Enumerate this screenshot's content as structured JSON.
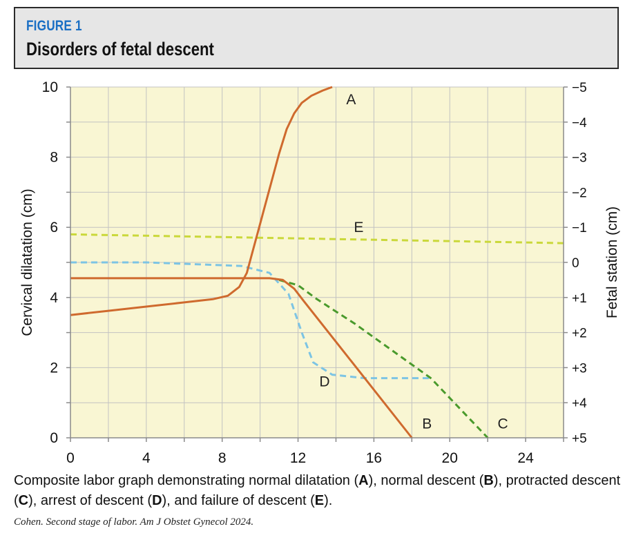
{
  "figure": {
    "label": "FIGURE 1",
    "title": "Disorders of fetal descent"
  },
  "caption": {
    "text_1": "Composite labor graph demonstrating normal dilatation (",
    "a": "A",
    "text_2": "), normal descent (",
    "b": "B",
    "text_3": "), protracted descent (",
    "c": "C",
    "text_4": "), arrest of descent (",
    "d": "D",
    "text_5": "), and failure of descent (",
    "e": "E",
    "text_6": ")."
  },
  "citation": "Cohen. Second stage of labor. Am J Obstet Gynecol 2024.",
  "colors": {
    "plot_bg": "#f9f6d3",
    "grid": "#c2c2c2",
    "axis": "#8a8a8a",
    "orange": "#cf6a2e",
    "green": "#4a9a2c",
    "blue": "#7cc4e4",
    "yellowgreen": "#cad83a"
  },
  "chart_data": {
    "type": "line",
    "xlabel": "",
    "ylabel": "Cervical dilatation (cm)",
    "y2label": "Fetal station (cm)",
    "xlim": [
      0,
      26
    ],
    "ylim": [
      0,
      10
    ],
    "y2lim": [
      5,
      -5
    ],
    "x_ticks": [
      0,
      4,
      8,
      12,
      16,
      20,
      24
    ],
    "y_ticks": [
      0,
      2,
      4,
      6,
      8,
      10
    ],
    "y2_ticks": [
      -5,
      -4,
      -3,
      -2,
      -1,
      0,
      1,
      2,
      3,
      4,
      5
    ],
    "y2_tick_labels": [
      "−5",
      "−4",
      "−3",
      "−2",
      "−1",
      "0",
      "+1",
      "+2",
      "+3",
      "+4",
      "+5"
    ],
    "grid": true,
    "series": [
      {
        "name": "A",
        "description": "normal dilatation",
        "axis": "left",
        "style": "solid",
        "color_key": "orange",
        "label_point": [
          14.8,
          9.65
        ],
        "points": [
          [
            0,
            3.5
          ],
          [
            2,
            3.62
          ],
          [
            4,
            3.74
          ],
          [
            6,
            3.86
          ],
          [
            7.5,
            3.95
          ],
          [
            8.3,
            4.05
          ],
          [
            8.9,
            4.3
          ],
          [
            9.3,
            4.7
          ],
          [
            9.6,
            5.3
          ],
          [
            9.9,
            5.9
          ],
          [
            10.2,
            6.5
          ],
          [
            10.6,
            7.3
          ],
          [
            11.0,
            8.1
          ],
          [
            11.4,
            8.8
          ],
          [
            11.8,
            9.25
          ],
          [
            12.2,
            9.55
          ],
          [
            12.7,
            9.75
          ],
          [
            13.3,
            9.9
          ],
          [
            13.8,
            10.0
          ]
        ]
      },
      {
        "name": "B",
        "description": "normal descent",
        "axis": "right",
        "style": "solid",
        "color_key": "orange",
        "label_point": [
          18.8,
          4.6
        ],
        "points": [
          [
            0,
            0.45
          ],
          [
            10.5,
            0.45
          ],
          [
            11.2,
            0.5
          ],
          [
            11.8,
            0.75
          ],
          [
            12.3,
            1.1
          ],
          [
            18.0,
            5.0
          ]
        ]
      },
      {
        "name": "C",
        "description": "protracted descent",
        "axis": "right",
        "style": "dashed",
        "color_key": "green",
        "label_point": [
          22.8,
          4.6
        ],
        "points": [
          [
            11.0,
            0.5
          ],
          [
            12.0,
            0.65
          ],
          [
            13.0,
            1.05
          ],
          [
            15.0,
            1.75
          ],
          [
            19.0,
            3.3
          ],
          [
            22.0,
            5.0
          ]
        ]
      },
      {
        "name": "D",
        "description": "arrest of descent",
        "axis": "right",
        "style": "dashed",
        "color_key": "blue",
        "label_point": [
          13.4,
          3.4
        ],
        "points": [
          [
            0,
            0.0
          ],
          [
            4,
            0.0
          ],
          [
            9,
            0.1
          ],
          [
            10.5,
            0.3
          ],
          [
            11.5,
            0.9
          ],
          [
            12.2,
            2.0
          ],
          [
            12.8,
            2.85
          ],
          [
            13.8,
            3.2
          ],
          [
            15.5,
            3.3
          ],
          [
            18.0,
            3.3
          ],
          [
            19.0,
            3.3
          ]
        ]
      },
      {
        "name": "E",
        "description": "failure of descent",
        "axis": "right",
        "style": "dashed",
        "color_key": "yellowgreen",
        "label_point": [
          15.2,
          -1.0
        ],
        "points": [
          [
            0,
            -0.8
          ],
          [
            26,
            -0.55
          ]
        ]
      }
    ]
  }
}
